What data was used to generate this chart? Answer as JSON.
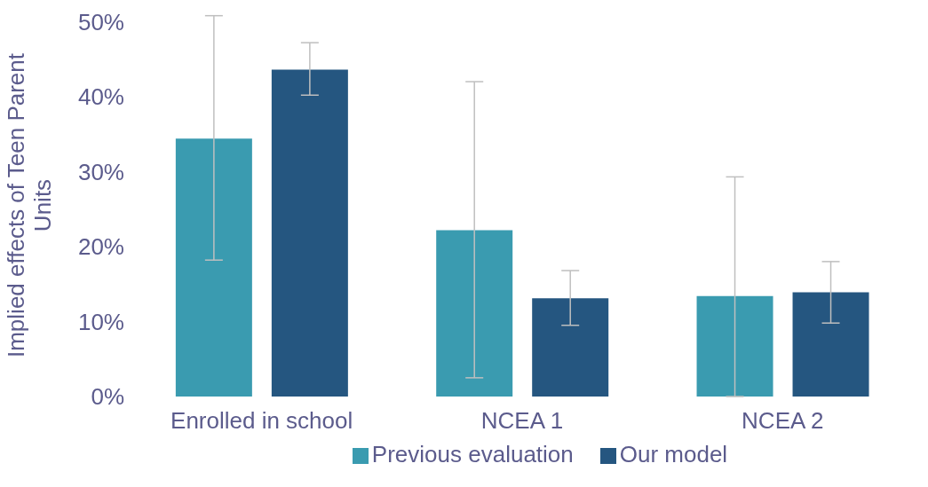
{
  "chart_data": {
    "type": "bar",
    "ylabel": "Implied effects of Teen Parent Units",
    "categories": [
      "Enrolled in school",
      "NCEA 1",
      "NCEA 2"
    ],
    "series": [
      {
        "name": "Previous evaluation",
        "color": "#3a9bb0",
        "values": [
          34.4,
          22.2,
          13.4
        ],
        "errors": [
          [
            18.2,
            50.8
          ],
          [
            2.5,
            42.0
          ],
          [
            0,
            29.3
          ]
        ]
      },
      {
        "name": "Our model",
        "color": "#255680",
        "values": [
          43.6,
          13.1,
          13.9
        ],
        "errors": [
          [
            40.2,
            47.2
          ],
          [
            9.5,
            16.8
          ],
          [
            9.8,
            18.0
          ]
        ]
      }
    ],
    "ylim": [
      0,
      51
    ],
    "yticks": [
      {
        "value": 0,
        "label": "0%"
      },
      {
        "value": 10,
        "label": "10%"
      },
      {
        "value": 20,
        "label": "20%"
      },
      {
        "value": 30,
        "label": "30%"
      },
      {
        "value": 40,
        "label": "40%"
      },
      {
        "value": 50,
        "label": "50%"
      }
    ],
    "grid": false,
    "legend": "bottom"
  }
}
